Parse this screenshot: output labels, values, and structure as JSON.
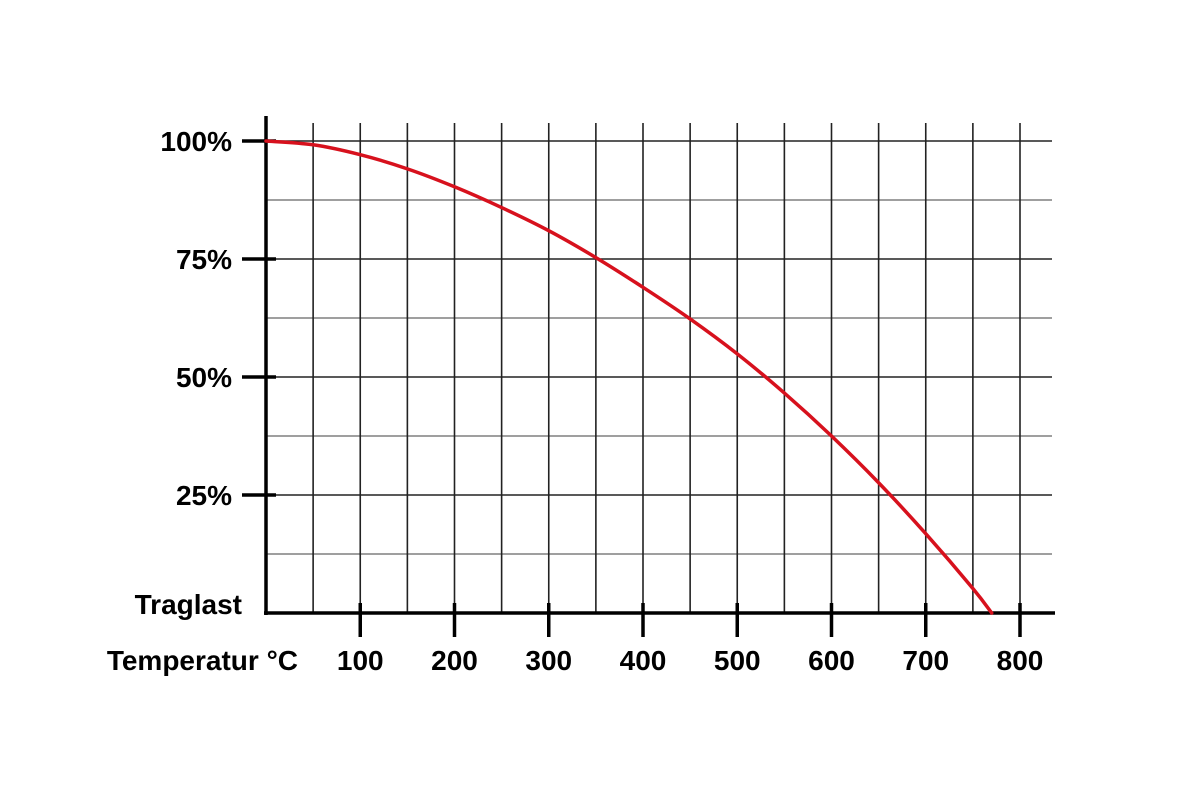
{
  "chart_data": {
    "type": "line",
    "title": "",
    "xlabel": "Temperatur °C",
    "ylabel": "Traglast",
    "xlim": [
      0,
      800
    ],
    "ylim": [
      0,
      100
    ],
    "x_tick_values": [
      100,
      200,
      300,
      400,
      500,
      600,
      700,
      800
    ],
    "x_tick_labels": [
      "100",
      "200",
      "300",
      "400",
      "500",
      "600",
      "700",
      "800"
    ],
    "y_tick_values": [
      25,
      50,
      75,
      100
    ],
    "y_tick_labels": [
      "25%",
      "50%",
      "75%",
      "100%"
    ],
    "grid": true,
    "legend": "none",
    "series": [
      {
        "color": "#d7111d",
        "x": [
          0,
          50,
          100,
          150,
          200,
          250,
          300,
          350,
          400,
          450,
          500,
          550,
          600,
          650,
          700,
          750,
          770
        ],
        "y": [
          100,
          99.2,
          97.1,
          94.1,
          90.3,
          85.9,
          81.0,
          75.3,
          69.0,
          62.3,
          54.9,
          46.6,
          37.5,
          27.6,
          16.8,
          5.2,
          0
        ]
      }
    ]
  }
}
